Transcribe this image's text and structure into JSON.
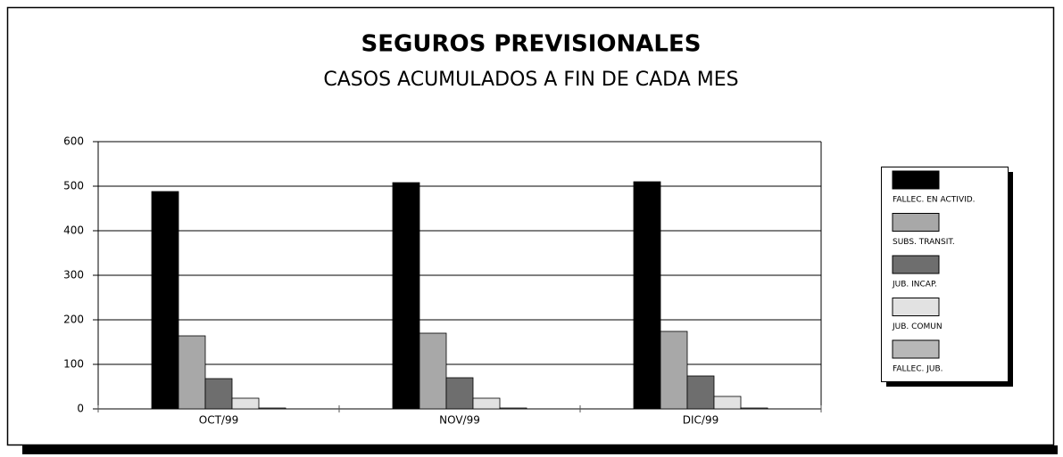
{
  "chart_data": {
    "type": "bar",
    "title": "SEGUROS PREVISIONALES",
    "subtitle": "CASOS ACUMULADOS A FIN DE CADA MES",
    "categories": [
      "OCT/99",
      "NOV/99",
      "DIC/99"
    ],
    "series": [
      {
        "name": "FALLEC. EN ACTIVID.",
        "color": "#000000",
        "values": [
          488,
          508,
          510
        ]
      },
      {
        "name": "SUBS. TRANSIT.",
        "color": "#a8a8a8",
        "values": [
          164,
          170,
          174
        ]
      },
      {
        "name": "JUB. INCAP.",
        "color": "#6e6e6e",
        "values": [
          68,
          70,
          74
        ]
      },
      {
        "name": "JUB. COMUN",
        "color": "#e2e2e2",
        "values": [
          24,
          24,
          28
        ]
      },
      {
        "name": "FALLEC. JUB.",
        "color": "#b8b8b8",
        "values": [
          2,
          2,
          2
        ]
      }
    ],
    "ylim": [
      0,
      600
    ],
    "yticks": [
      0,
      100,
      200,
      300,
      400,
      500,
      600
    ],
    "grid": true,
    "legend": "right"
  }
}
